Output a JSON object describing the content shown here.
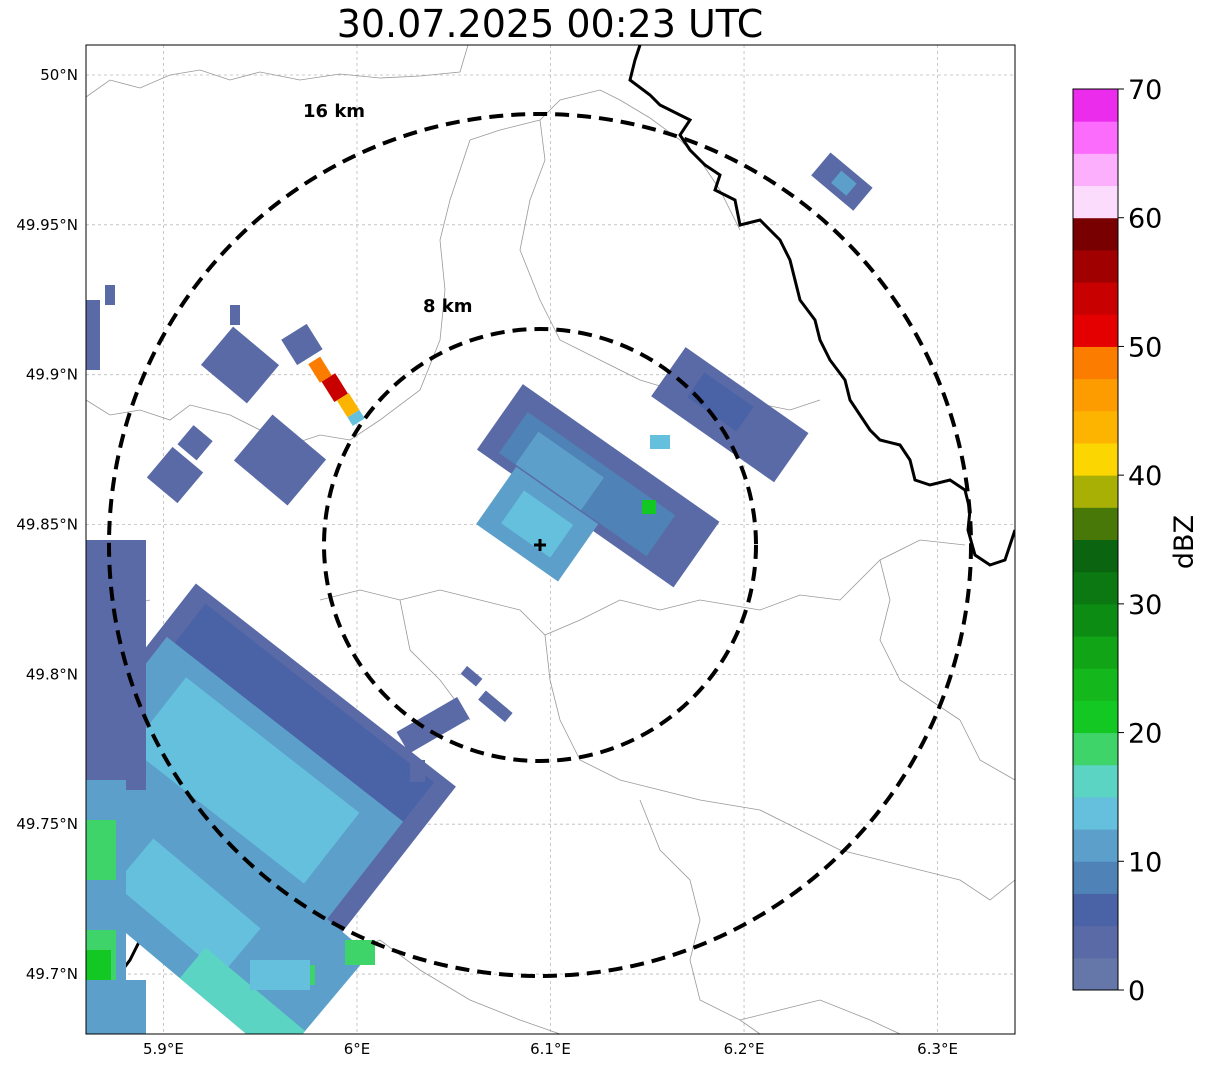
{
  "title": "30.07.2025 00:23 UTC",
  "map": {
    "lon_range": [
      5.86,
      6.34
    ],
    "lat_range": [
      49.68,
      50.01
    ],
    "lat_ticks": [
      {
        "value": 50.0,
        "label": "50°N"
      },
      {
        "value": 49.95,
        "label": "49.95°N"
      },
      {
        "value": 49.9,
        "label": "49.9°N"
      },
      {
        "value": 49.85,
        "label": "49.85°N"
      },
      {
        "value": 49.8,
        "label": "49.8°N"
      },
      {
        "value": 49.75,
        "label": "49.75°N"
      },
      {
        "value": 49.7,
        "label": "49.7°N"
      }
    ],
    "lon_ticks": [
      {
        "value": 5.9,
        "label": "5.9°E"
      },
      {
        "value": 6.0,
        "label": "6°E"
      },
      {
        "value": 6.1,
        "label": "6.1°E"
      },
      {
        "value": 6.2,
        "label": "6.2°E"
      },
      {
        "value": 6.3,
        "label": "6.3°E"
      }
    ],
    "center": {
      "lon": 6.094,
      "lat": 49.843
    },
    "range_rings": [
      {
        "label": "8 km",
        "radius_km": 8
      },
      {
        "label": "16 km",
        "radius_km": 16
      }
    ],
    "grid": true
  },
  "colorbar": {
    "label": "dBZ",
    "range": [
      0,
      70
    ],
    "ticks": [
      "0",
      "10",
      "20",
      "30",
      "40",
      "50",
      "60",
      "70"
    ],
    "colors": [
      "#6576a8",
      "#5a6aa6",
      "#4a62a6",
      "#4f82b6",
      "#5b9fca",
      "#65c0dd",
      "#5cd4c4",
      "#3ed46a",
      "#14c824",
      "#14b81c",
      "#10a416",
      "#0d8c13",
      "#0c7812",
      "#0a6410",
      "#487808",
      "#a8b005",
      "#fcd600",
      "#fcb400",
      "#fc9c00",
      "#fc7c00",
      "#e40000",
      "#c80000",
      "#a00000",
      "#780000",
      "#fcdcfc",
      "#fcaffc",
      "#fc6cfc",
      "#ec2cec"
    ]
  }
}
